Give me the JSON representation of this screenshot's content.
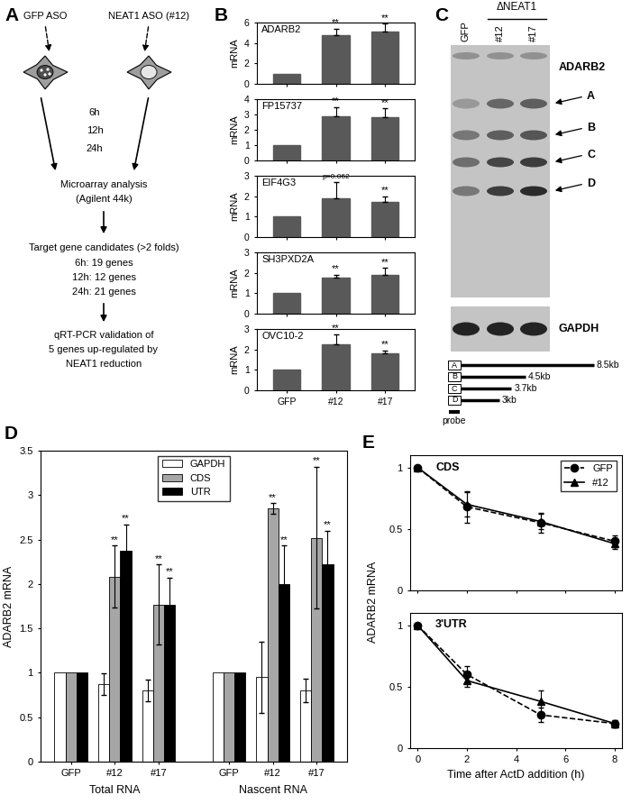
{
  "panel_labels": [
    "A",
    "B",
    "C",
    "D",
    "E"
  ],
  "diagram": {
    "cells": [
      "GFP ASO",
      "NEAT1 ASO (#12)"
    ],
    "timepoints": [
      "6h",
      "12h",
      "24h"
    ],
    "steps": [
      [
        "Microarray analysis",
        "(Agilent 44k)"
      ],
      [
        "Target gene candidates (>2 folds)",
        "6h: 19 genes",
        "12h: 12 genes",
        "24h: 21 genes"
      ],
      [
        "qRT-PCR validation of",
        "5 genes up-regulated by",
        "NEAT1 reduction"
      ]
    ]
  },
  "blot": {
    "lanes": [
      "GFP",
      "#12",
      "#17"
    ],
    "group_label": "ΔNEAT1",
    "group_lanes": [
      "#12",
      "#17"
    ],
    "probe": "ADARB2",
    "bands": [
      "A",
      "B",
      "C",
      "D"
    ],
    "control": "GAPDH",
    "transcripts": [
      {
        "label": "A",
        "length_kb": 8.5,
        "length_label": "8.5kb"
      },
      {
        "label": "B",
        "length_kb": 4.5,
        "length_label": "4.5kb"
      },
      {
        "label": "C",
        "length_kb": 3.7,
        "length_label": "3.7kb"
      },
      {
        "label": "D",
        "length_kb": 3,
        "length_label": "3kb"
      }
    ],
    "probe_label": "probe"
  },
  "chart_data": [
    {
      "type": "bar",
      "title": "ADARB2",
      "ylabel": "mRNA",
      "categories": [
        "GFP",
        "#12",
        "#17"
      ],
      "values": [
        1,
        4.8,
        5.1
      ],
      "errors": [
        null,
        0.6,
        0.8
      ],
      "color": "#595959",
      "ylim": [
        0,
        6
      ],
      "yticks": [
        0,
        2,
        4,
        6
      ],
      "tick_labels": "y",
      "annotations": [
        {
          "text": "**",
          "category": "#12"
        },
        {
          "text": "**",
          "category": "#17"
        }
      ]
    },
    {
      "type": "bar",
      "title": "FP15737",
      "ylabel": "mRNA",
      "categories": [
        "GFP",
        "#12",
        "#17"
      ],
      "values": [
        1,
        2.9,
        2.8
      ],
      "errors": [
        null,
        0.6,
        0.6
      ],
      "color": "#595959",
      "ylim": [
        0,
        4
      ],
      "yticks": [
        0,
        1,
        2,
        3,
        4
      ],
      "tick_labels": "y",
      "annotations": [
        {
          "text": "**",
          "category": "#12"
        },
        {
          "text": "**",
          "category": "#17"
        }
      ]
    },
    {
      "type": "bar",
      "title": "EIF4G3",
      "ylabel": "mRNA",
      "categories": [
        "GFP",
        "#12",
        "#17"
      ],
      "values": [
        1,
        1.9,
        1.7
      ],
      "errors": [
        null,
        0.8,
        0.3
      ],
      "color": "#595959",
      "ylim": [
        0,
        3
      ],
      "yticks": [
        0,
        1,
        2,
        3
      ],
      "tick_labels": "y",
      "annotations": [
        {
          "text": "p=0.062",
          "category": "#12"
        },
        {
          "text": "**",
          "category": "#17"
        }
      ]
    },
    {
      "type": "bar",
      "title": "SH3PXD2A",
      "ylabel": "mRNA",
      "categories": [
        "GFP",
        "#12",
        "#17"
      ],
      "values": [
        1,
        1.75,
        1.9
      ],
      "errors": [
        null,
        0.15,
        0.35
      ],
      "color": "#595959",
      "ylim": [
        0,
        3
      ],
      "yticks": [
        0,
        1,
        2,
        3
      ],
      "tick_labels": "y",
      "annotations": [
        {
          "text": "**",
          "category": "#12"
        },
        {
          "text": "**",
          "category": "#17"
        }
      ]
    },
    {
      "type": "bar",
      "title": "OVC10-2",
      "ylabel": "mRNA",
      "categories": [
        "GFP",
        "#12",
        "#17"
      ],
      "values": [
        1,
        2.25,
        1.8
      ],
      "errors": [
        null,
        0.5,
        0.15
      ],
      "color": "#595959",
      "ylim": [
        0,
        3
      ],
      "yticks": [
        0,
        1,
        2,
        3
      ],
      "annotations": [
        {
          "text": "**",
          "category": "#12"
        },
        {
          "text": "**",
          "category": "#17"
        }
      ]
    },
    {
      "type": "bar",
      "ylabel": "ADARB2 mRNA",
      "categories": [
        "GFP",
        "#12",
        "#17",
        "GFP",
        "#12",
        "#17"
      ],
      "group_labels": [
        "Total RNA",
        "Nascent RNA"
      ],
      "series": [
        {
          "name": "GAPDH",
          "color": "#ffffff",
          "values": [
            1,
            0.87,
            0.8,
            1,
            0.95,
            0.8
          ],
          "errors": [
            null,
            0.12,
            0.12,
            null,
            0.4,
            0.13
          ]
        },
        {
          "name": "CDS",
          "color": "#a6a6a6",
          "values": [
            1,
            2.08,
            1.77,
            1,
            2.85,
            2.52
          ],
          "errors": [
            null,
            0.35,
            0.45,
            null,
            0.06,
            0.8
          ]
        },
        {
          "name": "UTR",
          "color": "#000000",
          "values": [
            1,
            2.37,
            1.77,
            1,
            2.0,
            2.22
          ],
          "errors": [
            null,
            0.3,
            0.3,
            null,
            0.43,
            0.38
          ]
        }
      ],
      "ylim": [
        0,
        3.5
      ],
      "yticks": [
        0,
        0.5,
        1,
        1.5,
        2,
        2.5,
        3,
        3.5
      ],
      "legend": "upper center",
      "annotations": [
        {
          "text": "**",
          "series": "CDS",
          "category_index": 1
        },
        {
          "text": "**",
          "series": "UTR",
          "category_index": 1
        },
        {
          "text": "**",
          "series": "CDS",
          "category_index": 2
        },
        {
          "text": "**",
          "series": "UTR",
          "category_index": 2
        },
        {
          "text": "**",
          "series": "CDS",
          "category_index": 4
        },
        {
          "text": "**",
          "series": "UTR",
          "category_index": 4
        },
        {
          "text": "**",
          "series": "CDS",
          "category_index": 5
        },
        {
          "text": "**",
          "series": "UTR",
          "category_index": 5
        }
      ]
    },
    {
      "type": "line",
      "title": "CDS",
      "x": [
        0,
        2,
        5,
        8
      ],
      "xlim": [
        -0.3,
        8.3
      ],
      "xticks": [
        0,
        2,
        4,
        6,
        8
      ],
      "ylim": [
        0,
        1.1
      ],
      "yticks": [
        0,
        0.5,
        1
      ],
      "tick_labels": "y",
      "legend": "upper right",
      "series": [
        {
          "name": "GFP",
          "color": "#000000",
          "marker": "circle",
          "line_style": "dashed",
          "values": [
            1,
            0.68,
            0.55,
            0.4
          ],
          "errors": [
            null,
            0.13,
            0.08,
            0.05
          ]
        },
        {
          "name": "#12",
          "color": "#000000",
          "marker": "triangle",
          "line_style": "solid",
          "values": [
            1,
            0.7,
            0.56,
            0.38
          ],
          "errors": [
            null,
            0.1,
            0.06,
            0.04
          ]
        }
      ]
    },
    {
      "type": "line",
      "title": "3'UTR",
      "xlabel": "Time after ActD addition (h)",
      "ylabel": "ADARB2 mRNA",
      "x": [
        0,
        2,
        5,
        8
      ],
      "xlim": [
        -0.3,
        8.3
      ],
      "xticks": [
        0,
        2,
        4,
        6,
        8
      ],
      "ylim": [
        0,
        1.1
      ],
      "yticks": [
        0,
        0.5,
        1
      ],
      "series": [
        {
          "color": "#000000",
          "marker": "circle",
          "line_style": "dashed",
          "values": [
            1,
            0.6,
            0.27,
            0.2
          ],
          "errors": [
            null,
            0.07,
            0.06,
            0.03
          ]
        },
        {
          "color": "#000000",
          "marker": "triangle",
          "line_style": "solid",
          "values": [
            1,
            0.55,
            0.38,
            0.2
          ],
          "errors": [
            null,
            0.05,
            0.09,
            0.03
          ]
        }
      ]
    }
  ]
}
